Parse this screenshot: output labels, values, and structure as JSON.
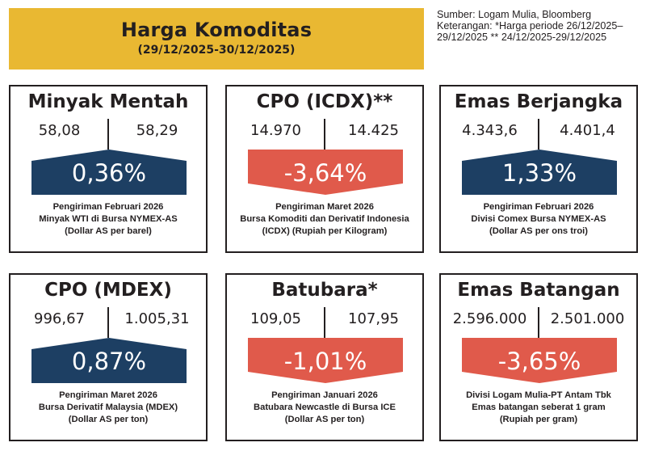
{
  "header": {
    "title": "Harga Komoditas",
    "period": "(29/12/2025-30/12/2025)"
  },
  "note": {
    "line1": "Sumber: Logam Mulia, Bloomberg",
    "line2": "Keterangan: *Harga periode 26/12/2025–",
    "line3": "29/12/2025 ** 24/12/2025-29/12/2025"
  },
  "colors": {
    "title_bg": "#e9b832",
    "up": "#1d3f63",
    "down": "#e05a4b"
  },
  "cards": [
    {
      "name": "Minyak Mentah",
      "price_prev": "58,08",
      "price_curr": "58,29",
      "change": "0,36%",
      "direction": "up",
      "desc1": "Pengiriman Februari 2026",
      "desc2": "Minyak WTI di Bursa NYMEX-AS",
      "desc3": "(Dollar AS per barel)"
    },
    {
      "name": "CPO (ICDX)**",
      "price_prev": "14.970",
      "price_curr": "14.425",
      "change": "-3,64%",
      "direction": "down",
      "desc1": "Pengiriman Maret 2026",
      "desc2": "Bursa Komoditi dan Derivatif Indonesia",
      "desc3": "(ICDX) (Rupiah per Kilogram)"
    },
    {
      "name": "Emas Berjangka",
      "price_prev": "4.343,6",
      "price_curr": "4.401,4",
      "change": "1,33%",
      "direction": "up",
      "desc1": "Pengiriman Februari 2026",
      "desc2": "Divisi Comex Bursa NYMEX-AS",
      "desc3": "(Dollar AS per ons troi)"
    },
    {
      "name": "CPO (MDEX)",
      "price_prev": "996,67",
      "price_curr": "1.005,31",
      "change": "0,87%",
      "direction": "up",
      "desc1": "Pengiriman Maret 2026",
      "desc2": "Bursa Derivatif Malaysia (MDEX)",
      "desc3": "(Dollar AS per ton)"
    },
    {
      "name": "Batubara*",
      "price_prev": "109,05",
      "price_curr": "107,95",
      "change": "-1,01%",
      "direction": "down",
      "desc1": "Pengiriman Januari 2026",
      "desc2": "Batubara Newcastle di Bursa ICE",
      "desc3": "(Dollar AS per ton)"
    },
    {
      "name": "Emas Batangan",
      "price_prev": "2.596.000",
      "price_curr": "2.501.000",
      "change": "-3,65%",
      "direction": "down",
      "desc1": "Divisi Logam Mulia-PT Antam Tbk",
      "desc2": "Emas batangan seberat 1 gram",
      "desc3": "(Rupiah per gram)"
    }
  ]
}
